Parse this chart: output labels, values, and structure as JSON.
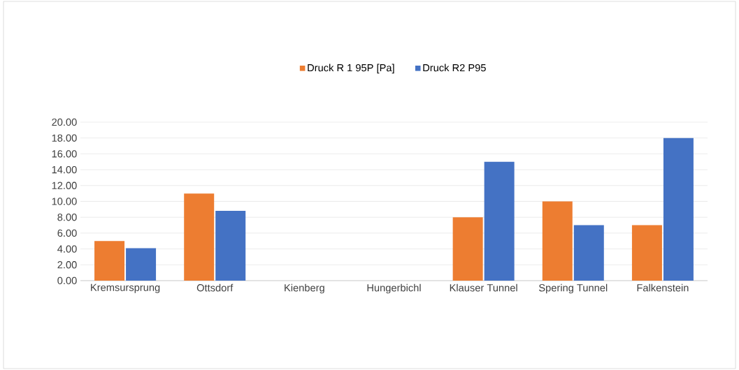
{
  "chart_data": {
    "type": "bar",
    "categories": [
      "Kremsursprung",
      "Ottsdorf",
      "Kienberg",
      "Hungerbichl",
      "Klauser Tunnel",
      "Spering Tunnel",
      "Falkenstein"
    ],
    "series": [
      {
        "name": "Druck R 1 95P [Pa]",
        "color": "#ed7d31",
        "values": [
          5.0,
          11.0,
          null,
          null,
          8.0,
          10.0,
          7.0
        ]
      },
      {
        "name": "Druck R2 P95",
        "color": "#4472c4",
        "values": [
          4.1,
          8.8,
          null,
          null,
          15.0,
          7.0,
          18.0
        ]
      }
    ],
    "ylim": [
      0,
      20
    ],
    "yticks": [
      {
        "value": 0,
        "label": "0.00"
      },
      {
        "value": 2,
        "label": "2.00"
      },
      {
        "value": 4,
        "label": "4.00"
      },
      {
        "value": 6,
        "label": "6.00"
      },
      {
        "value": 8,
        "label": "8.00"
      },
      {
        "value": 10,
        "label": "10.00"
      },
      {
        "value": 12,
        "label": "12.00"
      },
      {
        "value": 14,
        "label": "14.00"
      },
      {
        "value": 16,
        "label": "16.00"
      },
      {
        "value": 18,
        "label": "18.00"
      },
      {
        "value": 20,
        "label": "20.00"
      }
    ],
    "grid": "y",
    "legend": "top"
  }
}
